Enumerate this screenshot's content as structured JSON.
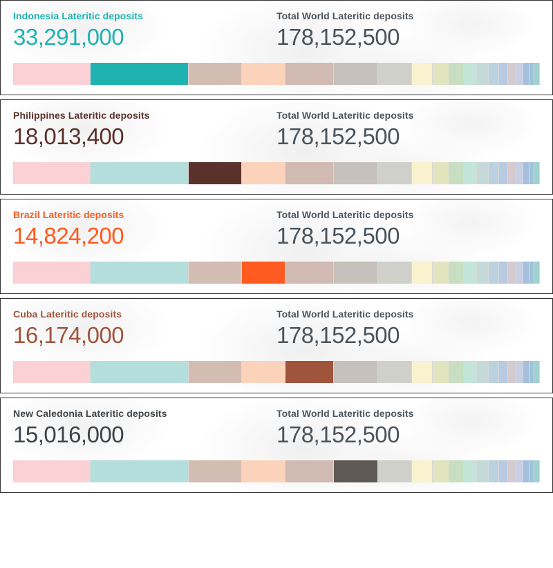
{
  "totalLabel": "Total World Lateritic deposits",
  "totalValue": "178,152,500",
  "totalColor": "#4a545c",
  "baseSegments": [
    {
      "w": 14.6,
      "c": "#fbd1d6"
    },
    {
      "w": 18.7,
      "c": "#b4dedb"
    },
    {
      "w": 10.1,
      "c": "#d3bdb3"
    },
    {
      "w": 8.3,
      "c": "#fbd3bb"
    },
    {
      "w": 9.1,
      "c": "#d0bab1"
    },
    {
      "w": 8.4,
      "c": "#c6c1bc"
    },
    {
      "w": 6.5,
      "c": "#d0d0ca"
    },
    {
      "w": 3.9,
      "c": "#f8f2cf"
    },
    {
      "w": 3.2,
      "c": "#e0e5be"
    },
    {
      "w": 2.8,
      "c": "#c7dec2"
    },
    {
      "w": 2.5,
      "c": "#c3e4d9"
    },
    {
      "w": 2.2,
      "c": "#c4dad8"
    },
    {
      "w": 1.9,
      "c": "#bad2df"
    },
    {
      "w": 1.8,
      "c": "#b8c9e2"
    },
    {
      "w": 1.5,
      "c": "#d4cbd0"
    },
    {
      "w": 1.3,
      "c": "#c8cfe4"
    },
    {
      "w": 1.2,
      "c": "#a5bfe0"
    },
    {
      "w": 1.0,
      "c": "#9fc3d6"
    },
    {
      "w": 1.0,
      "c": "#9ed1cf"
    }
  ],
  "panels": [
    {
      "label": "Indonesia Lateritic deposits",
      "value": "33,291,000",
      "accent": "#1fb2b0",
      "highlightIndex": 1,
      "highlightColor": "#1fb2b0"
    },
    {
      "label": "Philippines Lateritic deposits",
      "value": "18,013,400",
      "accent": "#5a322b",
      "highlightIndex": 2,
      "highlightColor": "#5a322b"
    },
    {
      "label": "Brazil Lateritic deposits",
      "value": "14,824,200",
      "accent": "#ff5a1f",
      "highlightIndex": 3,
      "highlightColor": "#ff5a1f"
    },
    {
      "label": "Cuba Lateritic deposits",
      "value": "16,174,000",
      "accent": "#a1543c",
      "highlightIndex": 4,
      "highlightColor": "#a1543c"
    },
    {
      "label": "New Caledonia Lateritic deposits",
      "value": "15,016,000",
      "accent": "#3f4448",
      "highlightIndex": 5,
      "highlightColor": "#5e5954"
    }
  ]
}
